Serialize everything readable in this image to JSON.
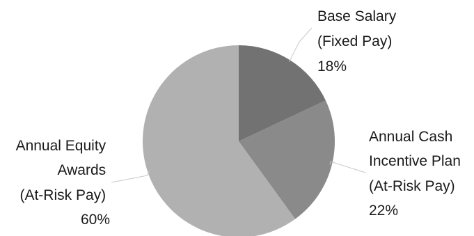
{
  "chart_data": {
    "type": "pie",
    "slices": [
      {
        "lines": [
          "Base Salary",
          "(Fixed Pay)",
          "18%"
        ],
        "value": 18,
        "color": "#727272"
      },
      {
        "lines": [
          "Annual Cash",
          "Incentive Plan",
          "(At-Risk Pay)",
          "22%"
        ],
        "value": 22,
        "color": "#8a8a8a"
      },
      {
        "lines": [
          "Annual Equity",
          "Awards",
          "(At-Risk Pay)",
          "60%"
        ],
        "value": 60,
        "color": "#b1b1b1"
      }
    ],
    "start_angle": "12 o'clock",
    "direction": "clockwise"
  }
}
